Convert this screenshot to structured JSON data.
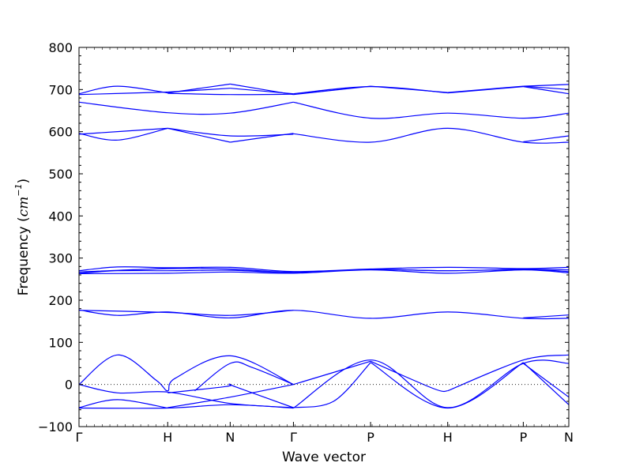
{
  "chart_data": {
    "type": "line",
    "title": "",
    "xlabel": "Wave vector",
    "ylabel": "Frequency ($cm^{-1}$)",
    "ylabel_parts": {
      "text": "Frequency (",
      "math_base": "cm",
      "math_sup": "−1",
      "close": ")"
    },
    "ylim": [
      -100,
      800
    ],
    "yticks": [
      -100,
      0,
      100,
      200,
      300,
      400,
      500,
      600,
      700,
      800
    ],
    "xlim": [
      0,
      6.35
    ],
    "xticks": [
      {
        "label": "Γ",
        "x": 0
      },
      {
        "label": "H",
        "x": 1.15
      },
      {
        "label": "N",
        "x": 1.96
      },
      {
        "label": "Γ",
        "x": 2.78
      },
      {
        "label": "P",
        "x": 3.78
      },
      {
        "label": "H",
        "x": 4.78
      },
      {
        "label": "P",
        "x": 5.76
      },
      {
        "label": "N",
        "x": 6.35
      }
    ],
    "zero_line": true,
    "line_color": "#0000ff",
    "series": [
      {
        "x": [
          0,
          0.5,
          1.15
        ],
        "y": [
          690,
          708,
          692
        ]
      },
      {
        "x": [
          0,
          1.15
        ],
        "y": [
          688,
          694
        ]
      },
      {
        "x": [
          1.15,
          1.96
        ],
        "y": [
          692,
          713
        ]
      },
      {
        "x": [
          1.96,
          2.78
        ],
        "y": [
          713,
          688
        ]
      },
      {
        "x": [
          1.15,
          1.96
        ],
        "y": [
          694,
          703
        ]
      },
      {
        "x": [
          1.96,
          2.78
        ],
        "y": [
          703,
          690
        ]
      },
      {
        "x": [
          1.15,
          1.96,
          2.78
        ],
        "y": [
          691,
          688,
          689
        ]
      },
      {
        "x": [
          2.78,
          3.78
        ],
        "y": [
          688,
          708
        ]
      },
      {
        "x": [
          3.78,
          4.78
        ],
        "y": [
          708,
          693
        ]
      },
      {
        "x": [
          4.78,
          5.76
        ],
        "y": [
          693,
          708
        ]
      },
      {
        "x": [
          5.76,
          6.35
        ],
        "y": [
          708,
          712
        ]
      },
      {
        "x": [
          2.78,
          3.78,
          4.78
        ],
        "y": [
          690,
          707,
          692
        ]
      },
      {
        "x": [
          4.78,
          5.76
        ],
        "y": [
          692,
          707
        ]
      },
      {
        "x": [
          5.76,
          6.35
        ],
        "y": [
          707,
          690
        ]
      },
      {
        "x": [
          5.76,
          6.35
        ],
        "y": [
          708,
          700
        ]
      },
      {
        "x": [
          0,
          1.15,
          1.96,
          2.78
        ],
        "y": [
          670,
          645,
          644,
          670
        ]
      },
      {
        "x": [
          2.78,
          3.78,
          4.78,
          5.76,
          6.35
        ],
        "y": [
          670,
          632,
          644,
          632,
          644
        ]
      },
      {
        "x": [
          0,
          0.5,
          1.15
        ],
        "y": [
          596,
          580,
          608
        ]
      },
      {
        "x": [
          0,
          1.15
        ],
        "y": [
          594,
          608
        ]
      },
      {
        "x": [
          1.15,
          1.96
        ],
        "y": [
          608,
          575
        ]
      },
      {
        "x": [
          1.96,
          2.78
        ],
        "y": [
          575,
          596
        ]
      },
      {
        "x": [
          1.15,
          1.96,
          2.78
        ],
        "y": [
          608,
          590,
          594
        ]
      },
      {
        "x": [
          2.78,
          3.78,
          4.78,
          5.76,
          6.35
        ],
        "y": [
          595,
          575,
          608,
          575,
          575
        ]
      },
      {
        "x": [
          5.76,
          6.35
        ],
        "y": [
          576,
          590
        ]
      },
      {
        "x": [
          0,
          0.5,
          1.15,
          1.96,
          2.78,
          3.78,
          4.78,
          5.76,
          6.35
        ],
        "y": [
          270,
          279,
          277,
          278,
          268,
          274,
          278,
          275,
          278
        ]
      },
      {
        "x": [
          0,
          1.15,
          1.96,
          2.78,
          3.78,
          4.78,
          5.76,
          6.35
        ],
        "y": [
          267,
          275,
          274,
          266,
          273,
          270,
          273,
          272
        ]
      },
      {
        "x": [
          0,
          0.5,
          1.15,
          1.96,
          2.78,
          3.78,
          4.78,
          5.76,
          6.35
        ],
        "y": [
          264,
          270,
          270,
          271,
          266,
          273,
          270,
          273,
          268
        ]
      },
      {
        "x": [
          0,
          1.15,
          1.96,
          2.78,
          3.78,
          4.78,
          5.76,
          6.35
        ],
        "y": [
          263,
          264,
          267,
          264,
          272,
          264,
          272,
          265
        ]
      },
      {
        "x": [
          0,
          0.5,
          1.15,
          1.96,
          2.78,
          3.78,
          4.78,
          5.76,
          6.35
        ],
        "y": [
          177,
          164,
          172,
          158,
          176,
          157,
          172,
          157,
          157
        ]
      },
      {
        "x": [
          0,
          1.15,
          1.96,
          2.78
        ],
        "y": [
          176,
          171,
          164,
          176
        ]
      },
      {
        "x": [
          5.76,
          6.35
        ],
        "y": [
          158,
          165
        ]
      },
      {
        "x": [
          0,
          0.5,
          1.0,
          1.15,
          1.25,
          1.96,
          2.78
        ],
        "y": [
          0,
          70,
          10,
          -15,
          15,
          68,
          0
        ]
      },
      {
        "x": [
          0,
          0.5,
          1.15,
          1.96,
          2.78
        ],
        "y": [
          0,
          -20,
          -18,
          -45,
          -55
        ]
      },
      {
        "x": [
          0,
          0.5,
          1.15
        ],
        "y": [
          -55,
          -36,
          -56
        ]
      },
      {
        "x": [
          0,
          1.15,
          1.96,
          2.78
        ],
        "y": [
          -56,
          -56,
          -48,
          -56
        ]
      },
      {
        "x": [
          1.15,
          1.96,
          2.78
        ],
        "y": [
          -55,
          -30,
          0
        ]
      },
      {
        "x": [
          1.5,
          1.96,
          2.25,
          2.78
        ],
        "y": [
          -15,
          50,
          40,
          0
        ]
      },
      {
        "x": [
          1.15,
          1.9,
          1.96,
          2.02,
          2.78
        ],
        "y": [
          -20,
          -5,
          0,
          -5,
          -55
        ]
      },
      {
        "x": [
          2.78,
          3.78
        ],
        "y": [
          0,
          55
        ]
      },
      {
        "x": [
          3.78,
          4.6,
          4.78
        ],
        "y": [
          55,
          -10,
          -15
        ]
      },
      {
        "x": [
          4.78,
          5.76,
          6.35
        ],
        "y": [
          -15,
          58,
          70
        ]
      },
      {
        "x": [
          2.78,
          3.3,
          3.78
        ],
        "y": [
          -55,
          -40,
          52
        ]
      },
      {
        "x": [
          3.78,
          4.78,
          5.76
        ],
        "y": [
          52,
          -56,
          52
        ]
      },
      {
        "x": [
          5.76,
          6.35
        ],
        "y": [
          52,
          -48
        ]
      },
      {
        "x": [
          2.78,
          3.78,
          4.78,
          5.76,
          6.35
        ],
        "y": [
          -56,
          58,
          -55,
          50,
          50
        ]
      },
      {
        "x": [
          5.76,
          6.35
        ],
        "y": [
          50,
          -30
        ]
      }
    ]
  }
}
